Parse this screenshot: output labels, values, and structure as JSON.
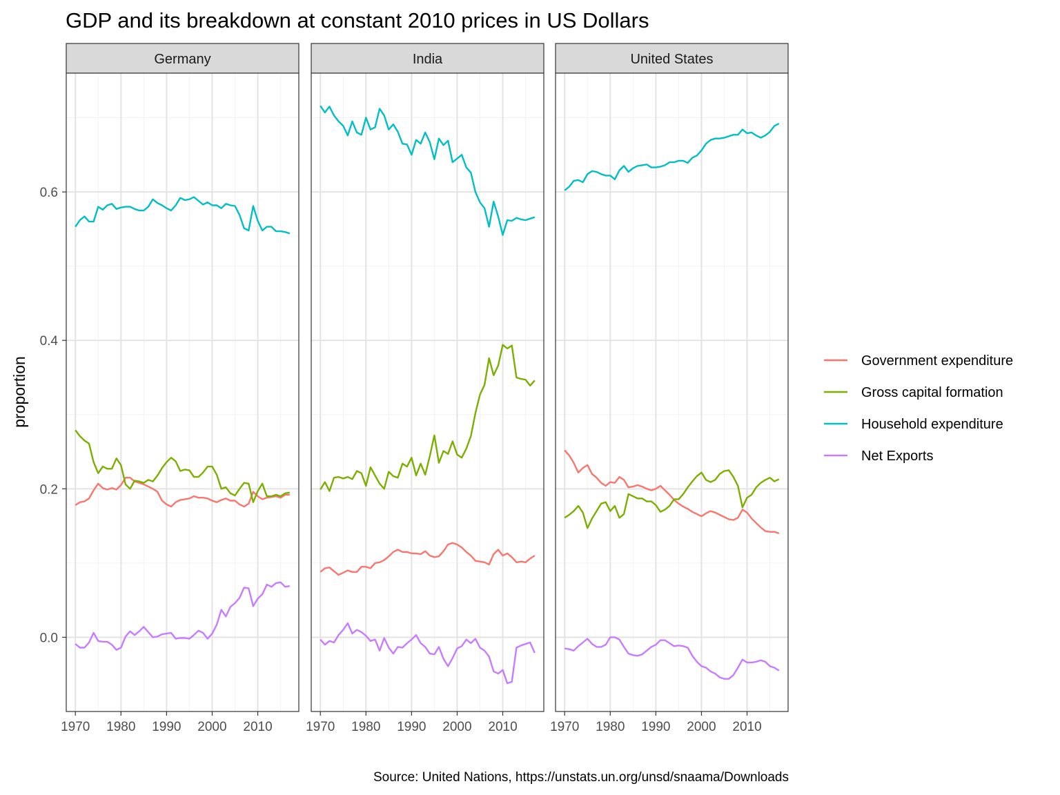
{
  "chart_data": {
    "type": "line",
    "title": "GDP and its breakdown at constant 2010 prices in US Dollars",
    "ylabel": "proportion",
    "xlabel": "",
    "caption": "Source: United Nations, https://unstats.un.org/unsd/snaama/Downloads",
    "xlim": [
      1968,
      2019
    ],
    "ylim": [
      -0.1,
      0.76
    ],
    "x_ticks": [
      1970,
      1980,
      1990,
      2000,
      2010
    ],
    "x_tick_labels": [
      "1970",
      "1980",
      "1990",
      "2000",
      "2010"
    ],
    "y_ticks": [
      0,
      0.2,
      0.4,
      0.6
    ],
    "y_tick_labels": [
      "0.0",
      "0.2",
      "0.4",
      "0.6"
    ],
    "grid": true,
    "legend_position": "right",
    "series_meta": [
      {
        "name": "Government expenditure",
        "color": "#F8766D"
      },
      {
        "name": "Gross capital formation",
        "color": "#7CAE00"
      },
      {
        "name": "Household expenditure",
        "color": "#00BFC4"
      },
      {
        "name": "Net Exports",
        "color": "#C77CFF"
      }
    ],
    "x": [
      1970,
      1971,
      1972,
      1973,
      1974,
      1975,
      1976,
      1977,
      1978,
      1979,
      1980,
      1981,
      1982,
      1983,
      1984,
      1985,
      1986,
      1987,
      1988,
      1989,
      1990,
      1991,
      1992,
      1993,
      1994,
      1995,
      1996,
      1997,
      1998,
      1999,
      2000,
      2001,
      2002,
      2003,
      2004,
      2005,
      2006,
      2007,
      2008,
      2009,
      2010,
      2011,
      2012,
      2013,
      2014,
      2015,
      2016,
      2017
    ],
    "panels": [
      {
        "name": "Germany",
        "series": [
          {
            "name": "Government expenditure",
            "values": [
              0.178,
              0.182,
              0.183,
              0.187,
              0.198,
              0.207,
              0.201,
              0.199,
              0.201,
              0.199,
              0.205,
              0.215,
              0.215,
              0.21,
              0.208,
              0.206,
              0.203,
              0.2,
              0.196,
              0.184,
              0.179,
              0.176,
              0.182,
              0.185,
              0.186,
              0.187,
              0.19,
              0.188,
              0.188,
              0.187,
              0.184,
              0.182,
              0.185,
              0.187,
              0.184,
              0.184,
              0.179,
              0.176,
              0.18,
              0.196,
              0.19,
              0.186,
              0.188,
              0.189,
              0.19,
              0.188,
              0.192,
              0.192
            ]
          },
          {
            "name": "Gross capital formation",
            "values": [
              0.279,
              0.271,
              0.265,
              0.261,
              0.236,
              0.221,
              0.23,
              0.227,
              0.227,
              0.241,
              0.232,
              0.206,
              0.2,
              0.211,
              0.21,
              0.208,
              0.212,
              0.21,
              0.218,
              0.228,
              0.236,
              0.242,
              0.237,
              0.224,
              0.226,
              0.225,
              0.216,
              0.216,
              0.222,
              0.23,
              0.23,
              0.219,
              0.2,
              0.202,
              0.194,
              0.191,
              0.2,
              0.208,
              0.207,
              0.182,
              0.197,
              0.207,
              0.19,
              0.19,
              0.192,
              0.19,
              0.194,
              0.195
            ]
          },
          {
            "name": "Household expenditure",
            "values": [
              0.553,
              0.562,
              0.567,
              0.56,
              0.56,
              0.58,
              0.576,
              0.582,
              0.584,
              0.577,
              0.579,
              0.58,
              0.58,
              0.577,
              0.575,
              0.575,
              0.58,
              0.59,
              0.585,
              0.582,
              0.578,
              0.575,
              0.582,
              0.592,
              0.589,
              0.59,
              0.593,
              0.588,
              0.583,
              0.586,
              0.582,
              0.582,
              0.578,
              0.584,
              0.582,
              0.581,
              0.569,
              0.551,
              0.548,
              0.581,
              0.561,
              0.548,
              0.553,
              0.553,
              0.547,
              0.547,
              0.546,
              0.544
            ]
          },
          {
            "name": "Net Exports",
            "values": [
              -0.009,
              -0.014,
              -0.014,
              -0.007,
              0.006,
              -0.005,
              -0.006,
              -0.006,
              -0.01,
              -0.017,
              -0.014,
              0.001,
              0.008,
              0.003,
              0.008,
              0.014,
              0.007,
              0.0,
              0.001,
              0.004,
              0.005,
              0.006,
              -0.002,
              -0.001,
              -0.001,
              -0.002,
              0.003,
              0.009,
              0.006,
              -0.002,
              0.005,
              0.017,
              0.037,
              0.028,
              0.041,
              0.046,
              0.053,
              0.067,
              0.066,
              0.042,
              0.052,
              0.058,
              0.071,
              0.068,
              0.073,
              0.074,
              0.068,
              0.069
            ]
          }
        ]
      },
      {
        "name": "India",
        "series": [
          {
            "name": "Government expenditure",
            "values": [
              0.088,
              0.093,
              0.094,
              0.089,
              0.084,
              0.087,
              0.09,
              0.088,
              0.088,
              0.095,
              0.095,
              0.093,
              0.1,
              0.101,
              0.104,
              0.109,
              0.115,
              0.118,
              0.115,
              0.115,
              0.113,
              0.113,
              0.112,
              0.116,
              0.11,
              0.108,
              0.109,
              0.116,
              0.125,
              0.127,
              0.125,
              0.121,
              0.115,
              0.11,
              0.103,
              0.102,
              0.101,
              0.098,
              0.112,
              0.118,
              0.11,
              0.113,
              0.108,
              0.101,
              0.102,
              0.101,
              0.106,
              0.11
            ]
          },
          {
            "name": "Gross capital formation",
            "values": [
              0.199,
              0.209,
              0.197,
              0.215,
              0.216,
              0.214,
              0.216,
              0.213,
              0.224,
              0.221,
              0.204,
              0.229,
              0.218,
              0.207,
              0.2,
              0.223,
              0.217,
              0.215,
              0.234,
              0.23,
              0.242,
              0.218,
              0.234,
              0.219,
              0.244,
              0.272,
              0.235,
              0.251,
              0.247,
              0.264,
              0.246,
              0.242,
              0.254,
              0.271,
              0.302,
              0.327,
              0.34,
              0.376,
              0.353,
              0.366,
              0.394,
              0.389,
              0.393,
              0.35,
              0.348,
              0.347,
              0.339,
              0.346
            ]
          },
          {
            "name": "Household expenditure",
            "values": [
              0.716,
              0.707,
              0.715,
              0.703,
              0.695,
              0.689,
              0.676,
              0.695,
              0.68,
              0.677,
              0.7,
              0.684,
              0.687,
              0.712,
              0.703,
              0.684,
              0.691,
              0.681,
              0.665,
              0.664,
              0.65,
              0.67,
              0.665,
              0.68,
              0.667,
              0.644,
              0.672,
              0.663,
              0.669,
              0.64,
              0.645,
              0.65,
              0.633,
              0.626,
              0.6,
              0.586,
              0.578,
              0.553,
              0.587,
              0.567,
              0.542,
              0.562,
              0.561,
              0.565,
              0.563,
              0.562,
              0.564,
              0.566
            ]
          },
          {
            "name": "Net Exports",
            "values": [
              -0.003,
              -0.01,
              -0.005,
              -0.007,
              0.003,
              0.01,
              0.019,
              0.005,
              0.01,
              0.007,
              0.002,
              -0.005,
              -0.003,
              -0.018,
              -0.001,
              -0.014,
              -0.022,
              -0.013,
              -0.014,
              -0.008,
              -0.003,
              0.003,
              -0.008,
              -0.013,
              -0.022,
              -0.023,
              -0.013,
              -0.029,
              -0.039,
              -0.028,
              -0.015,
              -0.012,
              -0.003,
              -0.008,
              -0.002,
              -0.014,
              -0.018,
              -0.026,
              -0.046,
              -0.049,
              -0.044,
              -0.062,
              -0.06,
              -0.014,
              -0.011,
              -0.009,
              -0.007,
              -0.021
            ]
          }
        ]
      },
      {
        "name": "United States",
        "series": [
          {
            "name": "Government expenditure",
            "values": [
              0.252,
              0.245,
              0.235,
              0.222,
              0.228,
              0.232,
              0.22,
              0.215,
              0.208,
              0.204,
              0.209,
              0.208,
              0.216,
              0.212,
              0.202,
              0.203,
              0.205,
              0.203,
              0.2,
              0.198,
              0.2,
              0.204,
              0.198,
              0.192,
              0.185,
              0.18,
              0.176,
              0.173,
              0.169,
              0.166,
              0.163,
              0.167,
              0.17,
              0.168,
              0.165,
              0.162,
              0.159,
              0.158,
              0.161,
              0.172,
              0.168,
              0.16,
              0.154,
              0.148,
              0.143,
              0.142,
              0.142,
              0.14
            ]
          },
          {
            "name": "Gross capital formation",
            "values": [
              0.161,
              0.165,
              0.17,
              0.177,
              0.168,
              0.147,
              0.16,
              0.17,
              0.18,
              0.182,
              0.17,
              0.177,
              0.161,
              0.166,
              0.193,
              0.19,
              0.187,
              0.187,
              0.183,
              0.183,
              0.178,
              0.169,
              0.172,
              0.177,
              0.186,
              0.186,
              0.193,
              0.202,
              0.21,
              0.217,
              0.222,
              0.212,
              0.209,
              0.212,
              0.22,
              0.224,
              0.225,
              0.216,
              0.204,
              0.175,
              0.188,
              0.192,
              0.202,
              0.208,
              0.212,
              0.215,
              0.21,
              0.213
            ]
          },
          {
            "name": "Household expenditure",
            "values": [
              0.602,
              0.607,
              0.615,
              0.616,
              0.613,
              0.624,
              0.628,
              0.627,
              0.624,
              0.622,
              0.622,
              0.617,
              0.629,
              0.635,
              0.627,
              0.632,
              0.635,
              0.636,
              0.637,
              0.633,
              0.633,
              0.634,
              0.636,
              0.64,
              0.64,
              0.642,
              0.642,
              0.639,
              0.646,
              0.649,
              0.656,
              0.665,
              0.67,
              0.672,
              0.672,
              0.673,
              0.675,
              0.677,
              0.677,
              0.684,
              0.679,
              0.68,
              0.676,
              0.673,
              0.676,
              0.681,
              0.689,
              0.692
            ]
          },
          {
            "name": "Net Exports",
            "values": [
              -0.015,
              -0.016,
              -0.018,
              -0.012,
              -0.007,
              -0.002,
              -0.009,
              -0.013,
              -0.013,
              -0.01,
              0.0,
              0.0,
              -0.003,
              -0.013,
              -0.022,
              -0.024,
              -0.025,
              -0.023,
              -0.018,
              -0.013,
              -0.01,
              -0.004,
              -0.004,
              -0.008,
              -0.012,
              -0.011,
              -0.012,
              -0.014,
              -0.025,
              -0.033,
              -0.039,
              -0.041,
              -0.046,
              -0.049,
              -0.054,
              -0.056,
              -0.056,
              -0.051,
              -0.041,
              -0.03,
              -0.034,
              -0.034,
              -0.033,
              -0.031,
              -0.033,
              -0.039,
              -0.041,
              -0.045
            ]
          }
        ]
      }
    ]
  }
}
